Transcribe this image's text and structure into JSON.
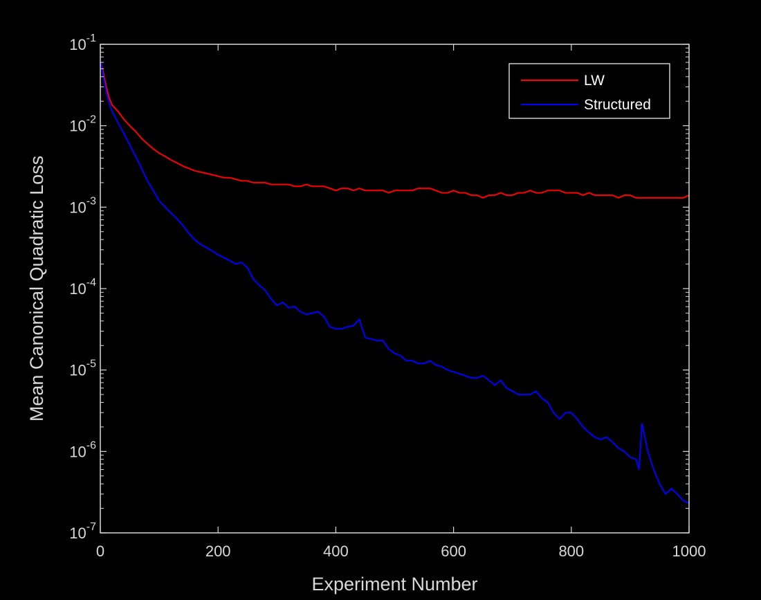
{
  "chart_data": {
    "type": "line",
    "xlabel": "Experiment Number",
    "ylabel": "Mean Canonical Quadratic Loss",
    "xlim": [
      0,
      1000
    ],
    "ylim": [
      1e-07,
      0.1
    ],
    "yscale": "log",
    "grid": false,
    "legend_position": "top-right",
    "x_ticks": [
      0,
      200,
      400,
      600,
      800,
      1000
    ],
    "x_tick_labels": [
      "0",
      "200",
      "400",
      "600",
      "800",
      "1000"
    ],
    "y_ticks": [
      {
        "value": 0.1,
        "base": "10",
        "exp": "-1"
      },
      {
        "value": 0.01,
        "base": "10",
        "exp": "-2"
      },
      {
        "value": 0.001,
        "base": "10",
        "exp": "-3"
      },
      {
        "value": 0.0001,
        "base": "10",
        "exp": "-4"
      },
      {
        "value": 1e-05,
        "base": "10",
        "exp": "-5"
      },
      {
        "value": 1e-06,
        "base": "10",
        "exp": "-6"
      },
      {
        "value": 1e-07,
        "base": "10",
        "exp": "-7"
      }
    ],
    "colors": {
      "background": "#000000",
      "axes": "#d9d9d9",
      "legend_box": "#ffffff"
    },
    "series": [
      {
        "name": "LW",
        "color": "#ff0000",
        "x": [
          1,
          5,
          10,
          15,
          20,
          30,
          40,
          50,
          60,
          70,
          80,
          90,
          100,
          110,
          120,
          130,
          140,
          150,
          160,
          170,
          180,
          190,
          200,
          210,
          220,
          230,
          240,
          250,
          260,
          270,
          280,
          290,
          300,
          310,
          320,
          330,
          340,
          350,
          360,
          370,
          380,
          390,
          400,
          410,
          420,
          430,
          440,
          450,
          460,
          470,
          480,
          490,
          500,
          510,
          520,
          530,
          540,
          550,
          560,
          570,
          580,
          590,
          600,
          610,
          620,
          630,
          640,
          650,
          660,
          670,
          680,
          690,
          700,
          710,
          720,
          730,
          740,
          750,
          760,
          770,
          780,
          790,
          800,
          810,
          820,
          830,
          840,
          850,
          860,
          870,
          880,
          890,
          900,
          910,
          920,
          930,
          940,
          950,
          960,
          970,
          980,
          990,
          1000
        ],
        "values": [
          0.06,
          0.045,
          0.03,
          0.022,
          0.018,
          0.015,
          0.012,
          0.01,
          0.0085,
          0.007,
          0.006,
          0.0052,
          0.0046,
          0.0042,
          0.0038,
          0.0035,
          0.0032,
          0.003,
          0.0028,
          0.0027,
          0.0026,
          0.0025,
          0.0024,
          0.0023,
          0.0023,
          0.0022,
          0.0021,
          0.0021,
          0.002,
          0.002,
          0.002,
          0.0019,
          0.0019,
          0.0019,
          0.0019,
          0.0018,
          0.0018,
          0.0019,
          0.0018,
          0.0018,
          0.0018,
          0.0017,
          0.0016,
          0.0017,
          0.0017,
          0.0016,
          0.0017,
          0.0016,
          0.0016,
          0.0016,
          0.0016,
          0.0015,
          0.0016,
          0.0016,
          0.0016,
          0.0016,
          0.0017,
          0.0017,
          0.0017,
          0.0016,
          0.0015,
          0.0015,
          0.0016,
          0.0015,
          0.0015,
          0.0014,
          0.0014,
          0.0013,
          0.0014,
          0.0014,
          0.0015,
          0.0014,
          0.0014,
          0.0015,
          0.0015,
          0.0016,
          0.0015,
          0.0015,
          0.0016,
          0.0016,
          0.0016,
          0.0015,
          0.0015,
          0.0015,
          0.0014,
          0.0015,
          0.0014,
          0.0014,
          0.0014,
          0.0014,
          0.0013,
          0.0014,
          0.0014,
          0.0013,
          0.0013,
          0.0013,
          0.0013,
          0.0013,
          0.0013,
          0.0013,
          0.0013,
          0.0013,
          0.0014
        ]
      },
      {
        "name": "Structured",
        "color": "#0000ff",
        "x": [
          1,
          5,
          10,
          15,
          20,
          30,
          40,
          50,
          60,
          70,
          80,
          90,
          100,
          110,
          120,
          130,
          140,
          150,
          160,
          170,
          180,
          190,
          200,
          210,
          220,
          230,
          240,
          250,
          260,
          270,
          280,
          290,
          300,
          310,
          320,
          330,
          340,
          350,
          360,
          370,
          380,
          390,
          400,
          410,
          420,
          430,
          440,
          450,
          460,
          470,
          480,
          490,
          500,
          510,
          520,
          530,
          540,
          550,
          560,
          570,
          580,
          590,
          600,
          610,
          620,
          630,
          640,
          650,
          660,
          670,
          680,
          690,
          700,
          710,
          720,
          730,
          740,
          750,
          760,
          770,
          780,
          790,
          800,
          810,
          820,
          830,
          840,
          850,
          860,
          870,
          880,
          890,
          900,
          910,
          915,
          920,
          930,
          940,
          950,
          960,
          970,
          980,
          990,
          1000
        ],
        "values": [
          0.06,
          0.04,
          0.026,
          0.019,
          0.015,
          0.011,
          0.008,
          0.0058,
          0.0042,
          0.003,
          0.0021,
          0.0016,
          0.0012,
          0.001,
          0.00085,
          0.00072,
          0.0006,
          0.00048,
          0.0004,
          0.00035,
          0.00032,
          0.00029,
          0.00026,
          0.00024,
          0.00022,
          0.0002,
          0.00021,
          0.00018,
          0.00013,
          0.00011,
          9.5e-05,
          7.5e-05,
          6.2e-05,
          6.8e-05,
          5.8e-05,
          6e-05,
          5.2e-05,
          4.8e-05,
          5e-05,
          5.2e-05,
          4.5e-05,
          3.4e-05,
          3.2e-05,
          3.2e-05,
          3.4e-05,
          3.5e-05,
          4.2e-05,
          2.5e-05,
          2.4e-05,
          2.3e-05,
          2.3e-05,
          1.8e-05,
          1.6e-05,
          1.5e-05,
          1.3e-05,
          1.3e-05,
          1.2e-05,
          1.2e-05,
          1.3e-05,
          1.15e-05,
          1.1e-05,
          1e-05,
          9.5e-06,
          9e-06,
          8.5e-06,
          8e-06,
          8e-06,
          8.5e-06,
          7.5e-06,
          6.5e-06,
          7.5e-06,
          6e-06,
          5.5e-06,
          5e-06,
          5e-06,
          5e-06,
          5.5e-06,
          4.5e-06,
          4e-06,
          3e-06,
          2.5e-06,
          3e-06,
          3e-06,
          2.5e-06,
          2e-06,
          1.7e-06,
          1.5e-06,
          1.4e-06,
          1.5e-06,
          1.3e-06,
          1.1e-06,
          1e-06,
          8.5e-07,
          8e-07,
          6e-07,
          2.2e-06,
          1e-06,
          6e-07,
          4e-07,
          3e-07,
          3.5e-07,
          3e-07,
          2.5e-07,
          2.3e-07
        ]
      }
    ]
  }
}
